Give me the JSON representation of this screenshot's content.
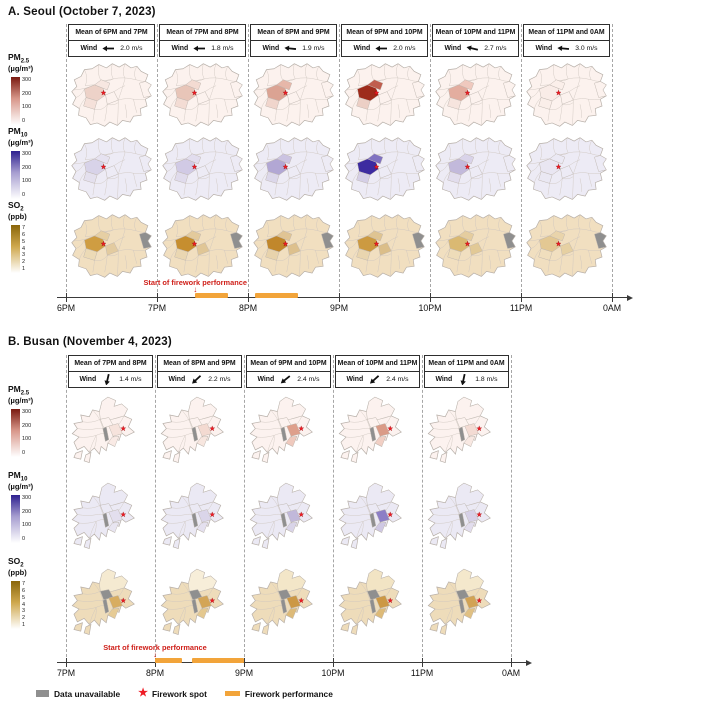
{
  "figure": {
    "panels": [
      {
        "id": "seoul",
        "title": "A. Seoul (October 7, 2023)",
        "columns": [
          {
            "header": "Mean of 6PM and 7PM",
            "wind_label": "Wind",
            "wind_speed": "2.0 m/s",
            "wind_dir_deg": 180
          },
          {
            "header": "Mean of 7PM and 8PM",
            "wind_label": "Wind",
            "wind_speed": "1.8 m/s",
            "wind_dir_deg": 180
          },
          {
            "header": "Mean of 8PM and 9PM",
            "wind_label": "Wind",
            "wind_speed": "1.9 m/s",
            "wind_dir_deg": 186
          },
          {
            "header": "Mean of 9PM and 10PM",
            "wind_label": "Wind",
            "wind_speed": "2.0 m/s",
            "wind_dir_deg": 180
          },
          {
            "header": "Mean of 10PM and 11PM",
            "wind_label": "Wind",
            "wind_speed": "2.7 m/s",
            "wind_dir_deg": 193
          },
          {
            "header": "Mean of 11PM and 0AM",
            "wind_label": "Wind",
            "wind_speed": "3.0 m/s",
            "wind_dir_deg": 185
          }
        ],
        "rows": [
          {
            "id": "pm25",
            "name": "PM",
            "sub": "2.5",
            "unit": "(µg/m³)",
            "ticks": [
              "300",
              "200",
              "100",
              "0"
            ],
            "grad_top": "#7a1a10",
            "grad_mid": "#d8978a"
          },
          {
            "id": "pm10",
            "name": "PM",
            "sub": "10",
            "unit": "(µg/m³)",
            "ticks": [
              "300",
              "200",
              "100",
              "0"
            ],
            "grad_top": "#2e2090",
            "grad_mid": "#a79ed0"
          },
          {
            "id": "so2",
            "name": "SO",
            "sub": "2",
            "unit": "(ppb)",
            "ticks": [
              "7",
              "6",
              "5",
              "4",
              "3",
              "2",
              "1"
            ],
            "grad_top": "#8a660a",
            "grad_mid": "#cfa84e"
          }
        ],
        "timeline": {
          "tick_labels": [
            "6PM",
            "7PM",
            "8PM",
            "9PM",
            "10PM",
            "11PM",
            "0AM"
          ],
          "bars": [
            [
              1.42,
              1.78
            ],
            [
              2.08,
              2.55
            ]
          ],
          "annotation": "Start of firework performance",
          "annotation_at": 1.42
        },
        "map_fills": {
          "pm25": [
            {
              "base": "#fcf2ee",
              "mapo": "#edd2c8",
              "seodaemun": "#f7e7e1",
              "yeong": "#f5e1da"
            },
            {
              "base": "#fcf2ee",
              "mapo": "#e8c5b8",
              "seodaemun": "#f3dbd2",
              "yeong": "#f3dcd4"
            },
            {
              "base": "#fcf2ee",
              "mapo": "#dba393",
              "seodaemun": "#e6b7a9",
              "yeong": "#f0d5cc"
            },
            {
              "base": "#fcf2ee",
              "mapo": "#9e2b1b",
              "seodaemun": "#c05e4e",
              "yeong": "#eccfc5"
            },
            {
              "base": "#fcf2ee",
              "mapo": "#e3ad9f",
              "seodaemun": "#efc9be",
              "yeong": "#f6e4de"
            },
            {
              "base": "#fcf2ee",
              "mapo": "#f9ece7",
              "seodaemun": "#fbefea",
              "yeong": "#faeee9"
            }
          ],
          "pm10": [
            {
              "base": "#edebf5",
              "mapo": "#d8d3e9",
              "seodaemun": "#e6e2f0",
              "yeong": "#e4e0ee"
            },
            {
              "base": "#edebf5",
              "mapo": "#d1cae5",
              "seodaemun": "#e2ddee",
              "yeong": "#e0dbec"
            },
            {
              "base": "#edebf5",
              "mapo": "#b2a7d4",
              "seodaemun": "#cbc3e1",
              "yeong": "#dcd7ea"
            },
            {
              "base": "#edebf5",
              "mapo": "#3d2ba0",
              "seodaemun": "#8072c1",
              "yeong": "#d5cfe6"
            },
            {
              "base": "#edebf5",
              "mapo": "#c2b9db",
              "seodaemun": "#d9d3e9",
              "yeong": "#e2dded"
            },
            {
              "base": "#edebf5",
              "mapo": "#e9e6f2",
              "seodaemun": "#ebe9f4",
              "yeong": "#eae8f3"
            }
          ],
          "so2": [
            {
              "base": "#f1dfc0",
              "mapo": "#cf9d42",
              "seodaemun": "#e6cfa4",
              "yeong": "#ecdab6",
              "center": "#e3cba0",
              "east": "#8f8f8f"
            },
            {
              "base": "#f1dfc0",
              "mapo": "#c68e2f",
              "seodaemun": "#e3ca9c",
              "yeong": "#ead7b2",
              "center": "#e0c696",
              "east": "#8f8f8f"
            },
            {
              "base": "#f1dfc0",
              "mapo": "#c1872b",
              "seodaemun": "#e0c494",
              "yeong": "#e8d3ac",
              "center": "#ddc08d",
              "east": "#8f8f8f"
            },
            {
              "base": "#f1dfc0",
              "mapo": "#cc9a41",
              "seodaemun": "#dfc492",
              "yeong": "#e9d5af",
              "center": "#dbbe89",
              "east": "#8f8f8f"
            },
            {
              "base": "#f1dfc0",
              "mapo": "#dab972",
              "seodaemun": "#e5cd9f",
              "yeong": "#eedcb9",
              "center": "#e2c996",
              "east": "#8f8f8f"
            },
            {
              "base": "#f1dfc0",
              "mapo": "#e3c893",
              "seodaemun": "#e9d4ab",
              "yeong": "#f0debd",
              "center": "#e6d0a2",
              "east": "#8f8f8f"
            }
          ]
        }
      },
      {
        "id": "busan",
        "title": "B. Busan (November 4, 2023)",
        "columns": [
          {
            "header": "Mean of 7PM and 8PM",
            "wind_label": "Wind",
            "wind_speed": "1.4 m/s",
            "wind_dir_deg": 103
          },
          {
            "header": "Mean of 8PM and 9PM",
            "wind_label": "Wind",
            "wind_speed": "2.2 m/s",
            "wind_dir_deg": 137
          },
          {
            "header": "Mean of 9PM and 10PM",
            "wind_label": "Wind",
            "wind_speed": "2.4 m/s",
            "wind_dir_deg": 141
          },
          {
            "header": "Mean of 10PM and 11PM",
            "wind_label": "Wind",
            "wind_speed": "2.4 m/s",
            "wind_dir_deg": 138
          },
          {
            "header": "Mean of 11PM and 0AM",
            "wind_label": "Wind",
            "wind_speed": "1.8 m/s",
            "wind_dir_deg": 102
          }
        ],
        "rows": [
          {
            "id": "pm25",
            "name": "PM",
            "sub": "2.5",
            "unit": "(µg/m³)",
            "ticks": [
              "300",
              "200",
              "100",
              "0"
            ],
            "grad_top": "#7a1a10",
            "grad_mid": "#d8978a"
          },
          {
            "id": "pm10",
            "name": "PM",
            "sub": "10",
            "unit": "(µg/m³)",
            "ticks": [
              "300",
              "200",
              "100",
              "0"
            ],
            "grad_top": "#2e2090",
            "grad_mid": "#a79ed0"
          },
          {
            "id": "so2",
            "name": "SO",
            "sub": "2",
            "unit": "(ppb)",
            "ticks": [
              "7",
              "6",
              "5",
              "4",
              "3",
              "2",
              "1"
            ],
            "grad_top": "#8a660a",
            "grad_mid": "#cfa84e"
          }
        ],
        "timeline": {
          "tick_labels": [
            "7PM",
            "8PM",
            "9PM",
            "10PM",
            "11PM",
            "0AM"
          ],
          "bars": [
            [
              1.0,
              1.3
            ],
            [
              1.42,
              2.0
            ]
          ],
          "annotation": "Start of firework performance",
          "annotation_at": 1.0
        },
        "map_fills": {
          "pm25": [
            {
              "base": "#fcf2ef",
              "strip": "#8f8f8f",
              "nam": "#f6e3dc",
              "pen": "#f9eae5"
            },
            {
              "base": "#fcf2ef",
              "strip": "#8f8f8f",
              "nam": "#f3dad1",
              "pen": "#f7e6df"
            },
            {
              "base": "#fcf2ef",
              "strip": "#8f8f8f",
              "nam": "#de9f8b",
              "pen": "#efc9bd"
            },
            {
              "base": "#fcf2ef",
              "strip": "#8f8f8f",
              "nam": "#da9b87",
              "pen": "#f1cfc4"
            },
            {
              "base": "#fcf2ef",
              "strip": "#8f8f8f",
              "nam": "#f3dbd3",
              "pen": "#f8e8e2"
            }
          ],
          "pm10": [
            {
              "base": "#ebe9f4",
              "strip": "#8f8f8f",
              "nam": "#e3dfee",
              "pen": "#e8e5f1"
            },
            {
              "base": "#ebe9f4",
              "strip": "#8f8f8f",
              "nam": "#dad5e9",
              "pen": "#e4e0ef"
            },
            {
              "base": "#ebe9f4",
              "strip": "#8f8f8f",
              "nam": "#c1b8da",
              "pen": "#d9d4e8"
            },
            {
              "base": "#ebe9f4",
              "strip": "#8f8f8f",
              "nam": "#8c7ec6",
              "pen": "#cfc8e3"
            },
            {
              "base": "#ebe9f4",
              "strip": "#8f8f8f",
              "nam": "#d6d0e7",
              "pen": "#e2dded"
            }
          ],
          "so2": [
            {
              "base": "#eedcba",
              "strip": "#8f8f8f",
              "blob": "#8f8f8f",
              "north": "#f5ead1",
              "nam": "#d8ad60",
              "pen": "#e6cb95"
            },
            {
              "base": "#eedcba",
              "strip": "#8f8f8f",
              "blob": "#8f8f8f",
              "north": "#f7eed9",
              "nam": "#d3a557",
              "pen": "#e4c88f"
            },
            {
              "base": "#eedcba",
              "strip": "#8f8f8f",
              "blob": "#8f8f8f",
              "north": "#f3e6c8",
              "nam": "#cc9845",
              "pen": "#ddba78"
            },
            {
              "base": "#eedcba",
              "strip": "#8f8f8f",
              "blob": "#8f8f8f",
              "north": "#f2e4c4",
              "nam": "#cc9845",
              "pen": "#ddba78"
            },
            {
              "base": "#eedcba",
              "strip": "#8f8f8f",
              "blob": "#8f8f8f",
              "north": "#f4e8cc",
              "nam": "#d2a355",
              "pen": "#e0c083"
            }
          ]
        }
      }
    ],
    "footer": [
      {
        "icon": "data-unavailable-swatch",
        "label": "Data unavailable",
        "color": "#8f8f8f"
      },
      {
        "icon": "firework-spot-star",
        "label": "Firework spot",
        "color": "#ee1c25"
      },
      {
        "icon": "firework-performance-bar",
        "label": "Firework performance",
        "color": "#f2a43a"
      }
    ]
  },
  "chart_data": {
    "type": "heatmap",
    "subtype": "choropleth-small-multiples-with-timeline",
    "panels": [
      {
        "city": "Seoul",
        "date": "October 7, 2023",
        "intervals": [
          "Mean of 6PM and 7PM",
          "Mean of 7PM and 8PM",
          "Mean of 8PM and 9PM",
          "Mean of 9PM and 10PM",
          "Mean of 10PM and 11PM",
          "Mean of 11PM and 0AM"
        ],
        "wind_speed_ms": [
          2.0,
          1.8,
          1.9,
          2.0,
          2.7,
          3.0
        ],
        "wind_direction": "westward arrows (left-pointing)",
        "pollutant_rows": [
          {
            "name": "PM2.5",
            "unit": "µg/m³",
            "scale": [
              0,
              300
            ],
            "peak_interval": "Mean of 9PM and 10PM",
            "peak_location": "district at firework spot (west-central Seoul)"
          },
          {
            "name": "PM10",
            "unit": "µg/m³",
            "scale": [
              0,
              300
            ],
            "peak_interval": "Mean of 9PM and 10PM",
            "peak_location": "district at firework spot (west-central Seoul)"
          },
          {
            "name": "SO2",
            "unit": "ppb",
            "scale": [
              1,
              7
            ],
            "notes": "one eastern district data unavailable (gray); darkest near firework spot 8-10PM"
          }
        ],
        "timeline_hours": [
          "6PM",
          "7PM",
          "8PM",
          "9PM",
          "10PM",
          "11PM",
          "0AM"
        ],
        "firework_start": "about 7:25PM",
        "firework_performance_windows": [
          "about 7:25-7:47PM",
          "about 8:05-8:33PM"
        ]
      },
      {
        "city": "Busan",
        "date": "November 4, 2023",
        "intervals": [
          "Mean of 7PM and 8PM",
          "Mean of 8PM and 9PM",
          "Mean of 9PM and 10PM",
          "Mean of 10PM and 11PM",
          "Mean of 11PM and 0AM"
        ],
        "wind_speed_ms": [
          1.4,
          2.2,
          2.4,
          2.4,
          1.8
        ],
        "wind_direction": "southward / southwestward arrows",
        "pollutant_rows": [
          {
            "name": "PM2.5",
            "unit": "µg/m³",
            "scale": [
              0,
              300
            ],
            "peak_interval": "Mean of 9PM and 10PM",
            "peak_location": "coastal district at firework spot (southeast Busan)"
          },
          {
            "name": "PM10",
            "unit": "µg/m³",
            "scale": [
              0,
              300
            ],
            "peak_interval": "Mean of 10PM and 11PM",
            "peak_location": "coastal district at firework spot (southeast Busan)"
          },
          {
            "name": "SO2",
            "unit": "ppb",
            "scale": [
              1,
              7
            ],
            "notes": "two central districts data unavailable (gray); darker tan near firework spot 9PM-0AM"
          }
        ],
        "timeline_hours": [
          "7PM",
          "8PM",
          "9PM",
          "10PM",
          "11PM",
          "0AM"
        ],
        "firework_start": "8:00PM",
        "firework_performance_windows": [
          "about 8:00-8:18PM",
          "about 8:25-9:00PM"
        ]
      }
    ]
  }
}
